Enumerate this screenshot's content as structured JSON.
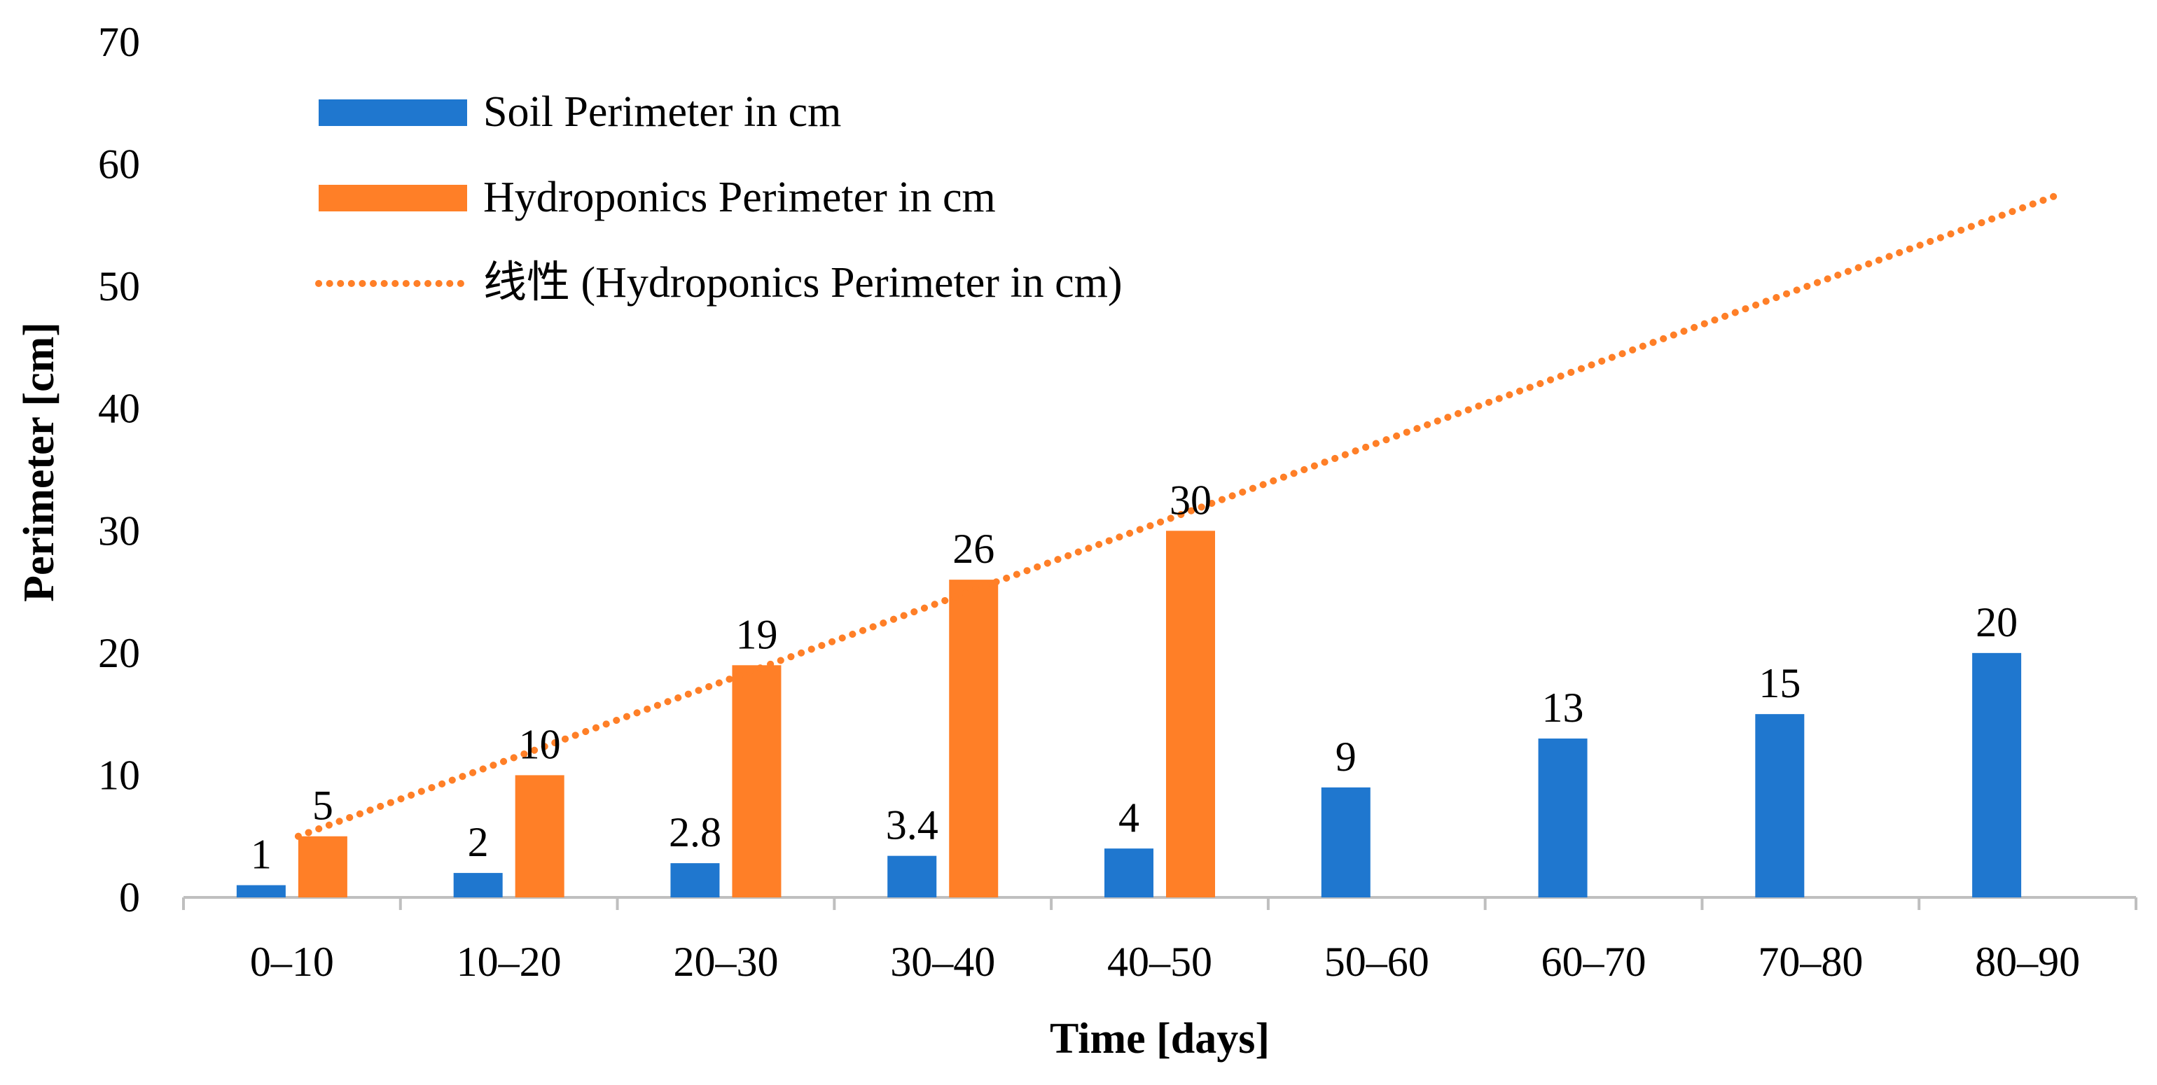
{
  "chart_data": {
    "type": "bar",
    "title": "",
    "xlabel": "Time [days]",
    "ylabel": "Perimeter [cm]",
    "ylim": [
      0,
      70
    ],
    "yticks": [
      0,
      10,
      20,
      30,
      40,
      50,
      60,
      70
    ],
    "grid": false,
    "legend_position": "top-left",
    "categories": [
      "0–10",
      "10–20",
      "20–30",
      "30–40",
      "40–50",
      "50–60",
      "60–70",
      "70–80",
      "80–90"
    ],
    "series": [
      {
        "name": "Soil Perimeter in cm",
        "type": "bar",
        "color": "#1F77CF",
        "values": [
          1,
          2,
          2.8,
          3.4,
          4,
          9,
          13,
          15,
          20
        ],
        "labels": [
          "1",
          "2",
          "2.8",
          "3.4",
          "4",
          "9",
          "13",
          "15",
          "20"
        ]
      },
      {
        "name": "Hydroponics Perimeter in cm",
        "type": "bar",
        "color": "#FF7F27",
        "values": [
          5,
          10,
          19,
          26,
          30,
          null,
          null,
          null,
          null
        ],
        "labels": [
          "5",
          "10",
          "19",
          "26",
          "30",
          null,
          null,
          null,
          null
        ]
      }
    ],
    "trendline": {
      "name": "线性 (Hydroponics Perimeter in cm)",
      "type": "linear",
      "style": "dotted",
      "color": "#FF7F27",
      "start": {
        "category": "0–10",
        "value": 5
      },
      "end": {
        "category": "80–90",
        "value": 57.5
      }
    }
  }
}
